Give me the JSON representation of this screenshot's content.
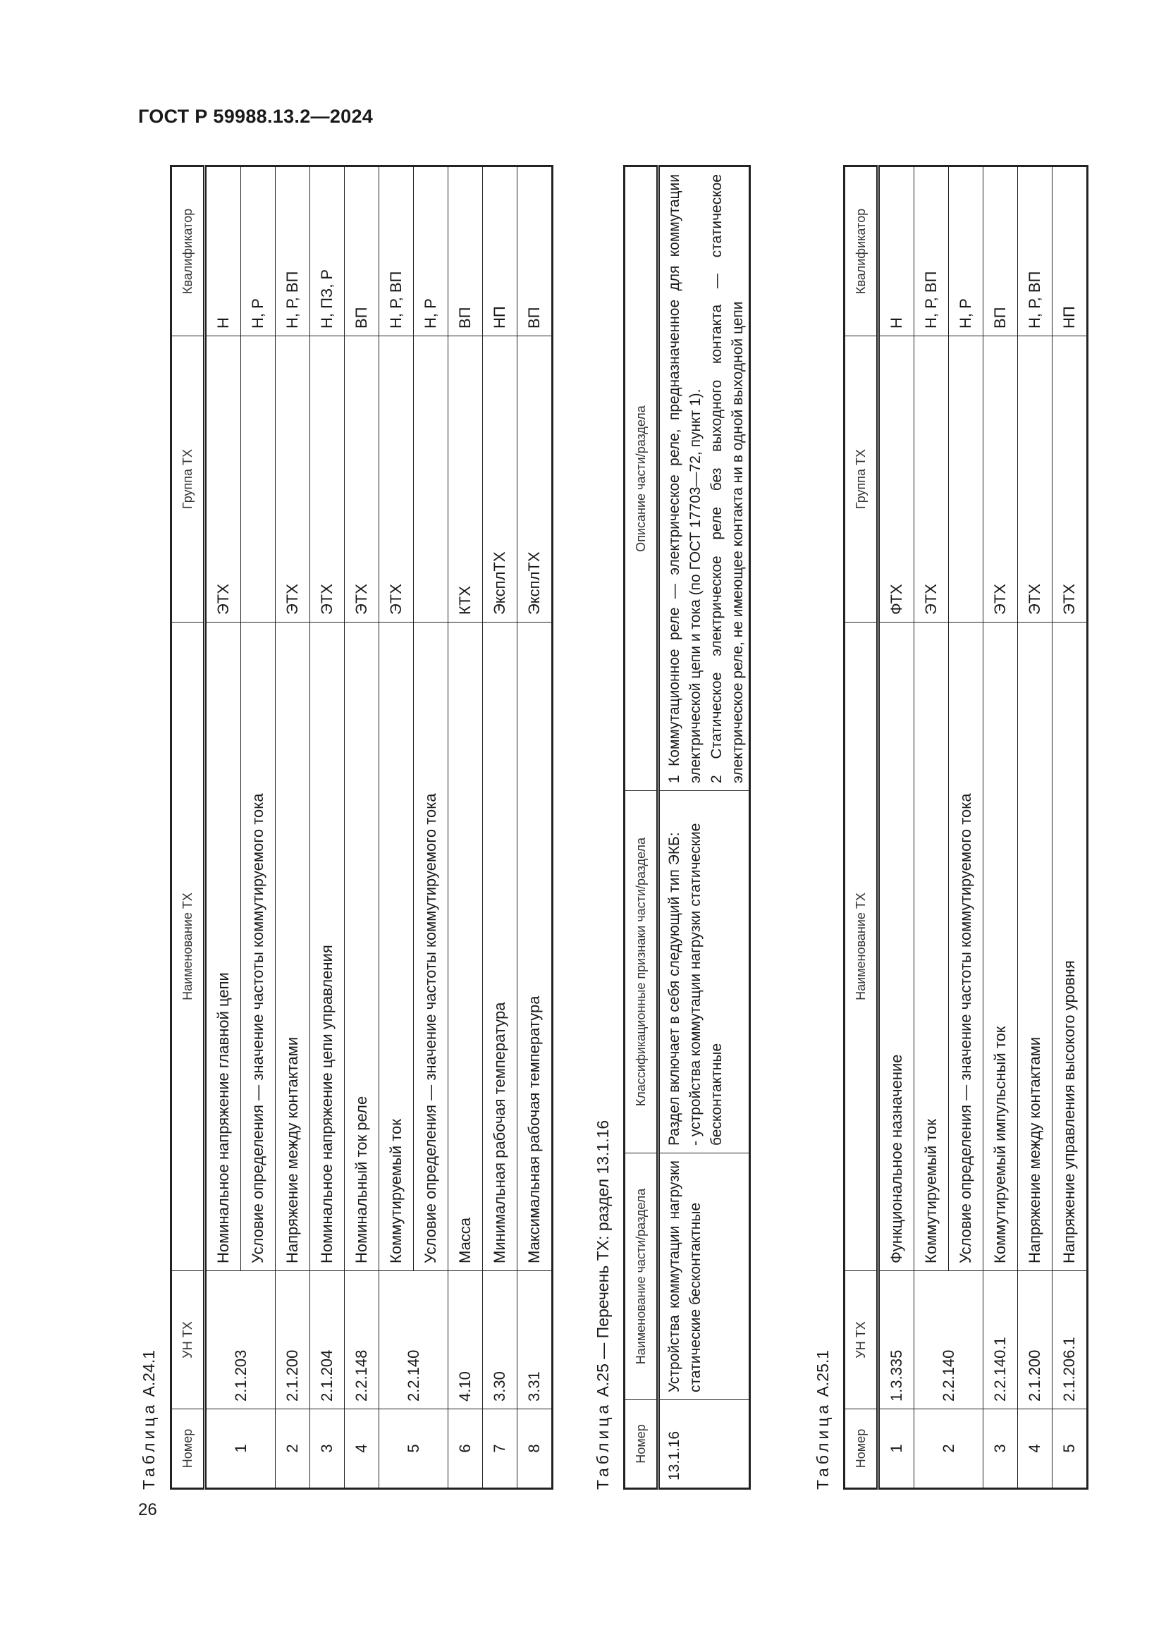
{
  "header": {
    "title": "ГОСТ Р 59988.13.2—2024",
    "page_number": "26"
  },
  "table_a24_1": {
    "caption_word": "Таблица",
    "caption_id": "А.24.1",
    "columns": [
      "Номер",
      "УН ТХ",
      "Наименование ТХ",
      "Группа ТХ",
      "Квалификатор"
    ],
    "rows": [
      {
        "num": "1",
        "code": "2.1.203",
        "items": [
          {
            "name": "Номинальное напряжение главной цепи",
            "group": "ЭТХ",
            "qual": "Н"
          },
          {
            "name": "Условие определения — значение частоты коммутируемого тока",
            "group": "",
            "qual": "Н, Р"
          }
        ]
      },
      {
        "num": "2",
        "code": "2.1.200",
        "items": [
          {
            "name": "Напряжение между контактами",
            "group": "ЭТХ",
            "qual": "Н, Р, ВП"
          }
        ]
      },
      {
        "num": "3",
        "code": "2.1.204",
        "items": [
          {
            "name": "Номинальное напряжение цепи управления",
            "group": "ЭТХ",
            "qual": "Н, ПЗ, Р"
          }
        ]
      },
      {
        "num": "4",
        "code": "2.2.148",
        "items": [
          {
            "name": "Номинальный ток реле",
            "group": "ЭТХ",
            "qual": "ВП"
          }
        ]
      },
      {
        "num": "5",
        "code": "2.2.140",
        "items": [
          {
            "name": "Коммутируемый ток",
            "group": "ЭТХ",
            "qual": "Н, Р, ВП"
          },
          {
            "name": "Условие определения — значение частоты коммутируемого тока",
            "group": "",
            "qual": "Н, Р"
          }
        ]
      },
      {
        "num": "6",
        "code": "4.10",
        "items": [
          {
            "name": "Масса",
            "group": "КТХ",
            "qual": "ВП"
          }
        ]
      },
      {
        "num": "7",
        "code": "3.30",
        "items": [
          {
            "name": "Минимальная рабочая температура",
            "group": "ЭксплТХ",
            "qual": "НП"
          }
        ]
      },
      {
        "num": "8",
        "code": "3.31",
        "items": [
          {
            "name": "Максимальная рабочая температура",
            "group": "ЭксплТХ",
            "qual": "ВП"
          }
        ]
      }
    ]
  },
  "table_a25": {
    "caption_word": "Таблица",
    "caption_rest": "А.25 — Перечень ТХ: раздел 13.1.16",
    "columns": [
      "Номер",
      "Наименование части/раздела",
      "Классификационные признаки части/раздела",
      "Описание части/раздела"
    ],
    "row": {
      "num": "13.1.16",
      "name": "Устройства коммутации нагрузки статические бесконтактные",
      "features": [
        "Раздел включает в себя следующий тип ЭКБ:",
        "- устройства коммутации нагрузки статические бесконтактные"
      ],
      "description": [
        "1 Коммутационное реле — электрическое реле, предназначенное для коммутации электрической цепи и тока (по ГОСТ 17703—72, пункт 1).",
        "2 Статическое электрическое реле без выходного контакта — статическое электрическое реле, не имеющее контакта ни в одной выходной цепи"
      ]
    }
  },
  "table_a25_1": {
    "caption_word": "Таблица",
    "caption_id": "А.25.1",
    "columns": [
      "Номер",
      "УН ТХ",
      "Наименование ТХ",
      "Группа ТХ",
      "Квалификатор"
    ],
    "rows": [
      {
        "num": "1",
        "code": "1.3.335",
        "items": [
          {
            "name": "Функциональное назначение",
            "group": "ФТХ",
            "qual": "Н"
          }
        ]
      },
      {
        "num": "2",
        "code": "2.2.140",
        "items": [
          {
            "name": "Коммутируемый ток",
            "group": "ЭТХ",
            "qual": "Н, Р, ВП"
          },
          {
            "name": "Условие определения — значение частоты коммутируемого тока",
            "group": "",
            "qual": "Н, Р"
          }
        ]
      },
      {
        "num": "3",
        "code": "2.2.140.1",
        "items": [
          {
            "name": "Коммутируемый импульсный ток",
            "group": "ЭТХ",
            "qual": "ВП"
          }
        ]
      },
      {
        "num": "4",
        "code": "2.1.200",
        "items": [
          {
            "name": "Напряжение между контактами",
            "group": "ЭТХ",
            "qual": "Н, Р, ВП"
          }
        ]
      },
      {
        "num": "5",
        "code": "2.1.206.1",
        "items": [
          {
            "name": "Напряжение управления высокого уровня",
            "group": "ЭТХ",
            "qual": "НП"
          }
        ]
      }
    ]
  }
}
